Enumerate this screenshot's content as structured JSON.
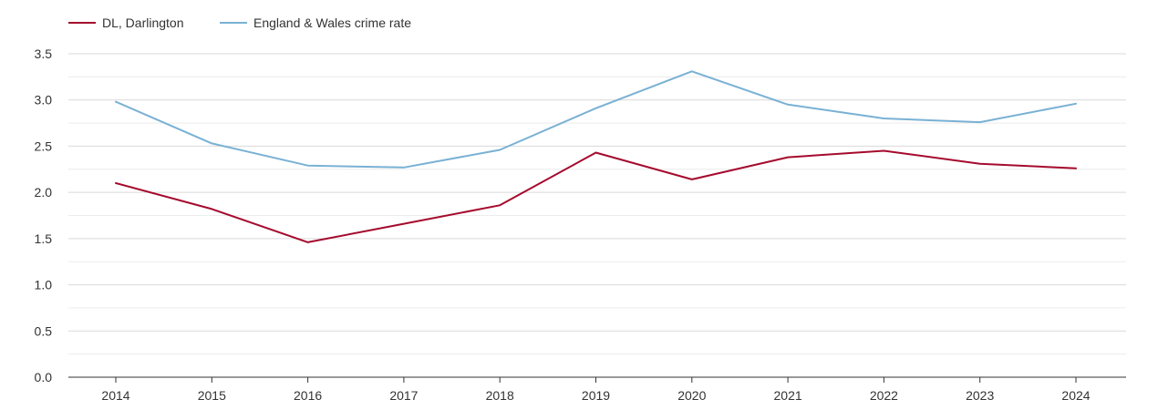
{
  "chart_data": {
    "type": "line",
    "title": "",
    "xlabel": "",
    "ylabel": "",
    "categories": [
      "2014",
      "2015",
      "2016",
      "2017",
      "2018",
      "2019",
      "2020",
      "2021",
      "2022",
      "2023",
      "2024"
    ],
    "ylim": [
      0,
      3.5
    ],
    "yticks": [
      "0.0",
      "0.5",
      "1.0",
      "1.5",
      "2.0",
      "2.5",
      "3.0",
      "3.5"
    ],
    "grid": true,
    "legend_position": "top-left",
    "series": [
      {
        "name": "DL, Darlington",
        "color": "#a50a2d",
        "values": [
          2.1,
          1.82,
          1.46,
          1.66,
          1.86,
          2.43,
          2.14,
          2.38,
          2.45,
          2.31,
          2.26
        ]
      },
      {
        "name": "England & Wales crime rate",
        "color": "#79b1d4",
        "values": [
          2.98,
          2.53,
          2.29,
          2.27,
          2.46,
          2.91,
          3.31,
          2.95,
          2.8,
          2.76,
          2.96
        ]
      }
    ]
  }
}
